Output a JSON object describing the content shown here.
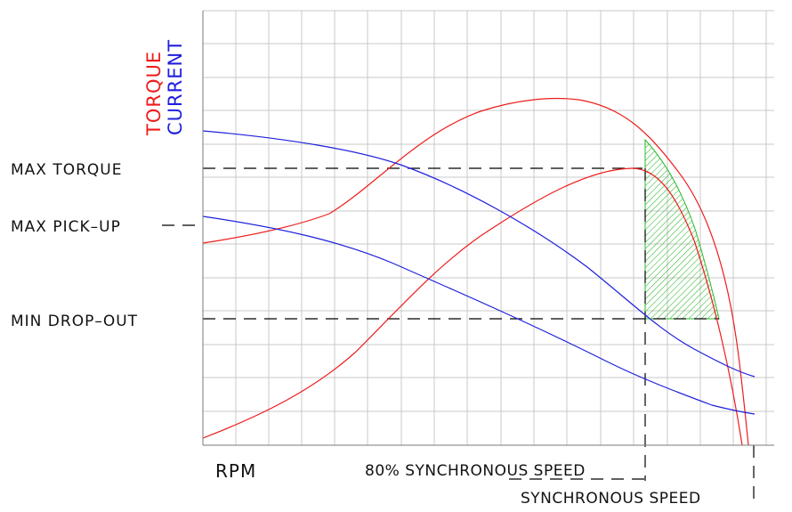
{
  "colors": {
    "torque": "#ee1c1c",
    "current": "#1f1fdd",
    "grid": "#c8c8c8",
    "axis": "#7a7a7a",
    "hatch": "#2ab82a",
    "dashed": "#000000",
    "text": "#111111"
  },
  "labels": {
    "y_torque": "TORQUE",
    "y_current": "CURRENT",
    "x_axis": "RPM",
    "max_torque": "MAX TORQUE",
    "max_pickup": "MAX PICK–UP",
    "min_dropout": "MIN DROP–OUT",
    "synch80": "80% SYNCHRONOUS SPEED",
    "synch": "SYNCHRONOUS SPEED"
  }
}
